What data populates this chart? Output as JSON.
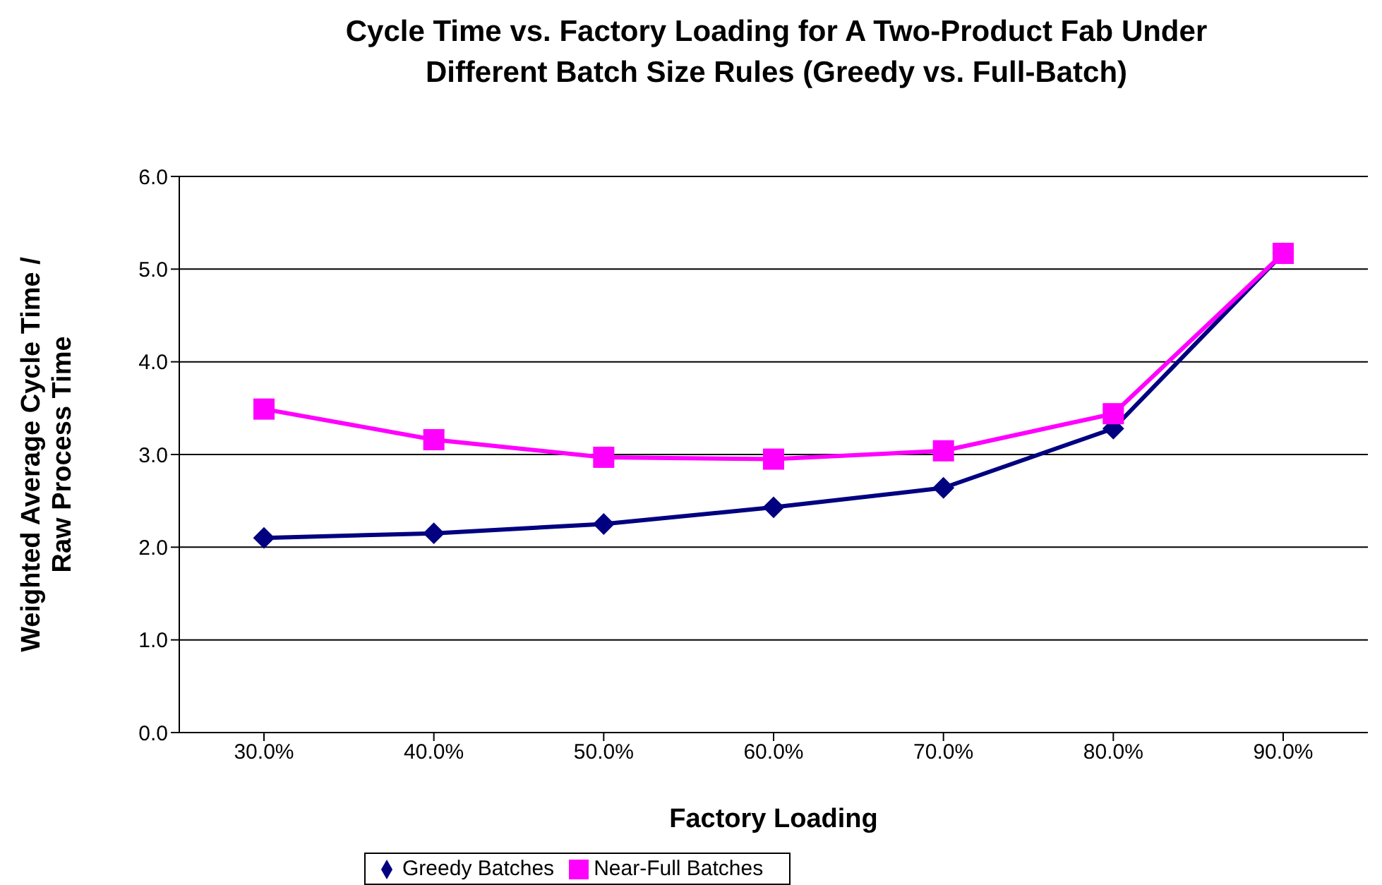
{
  "chart_data": {
    "type": "line",
    "title": "Cycle Time vs. Factory Loading for A Two-Product Fab Under Different Batch Size Rules (Greedy vs. Full-Batch)",
    "xlabel": "Factory Loading",
    "ylabel": "Weighted Average Cycle Time / Raw Process Time",
    "categories": [
      "30.0%",
      "40.0%",
      "50.0%",
      "60.0%",
      "70.0%",
      "80.0%",
      "90.0%"
    ],
    "series": [
      {
        "name": "Greedy Batches",
        "color": "#000080",
        "marker": "diamond",
        "values": [
          2.1,
          2.15,
          2.25,
          2.43,
          2.64,
          3.28,
          5.17
        ]
      },
      {
        "name": "Near-Full Batches",
        "color": "#ff00ff",
        "marker": "square",
        "values": [
          3.49,
          3.16,
          2.97,
          2.95,
          3.04,
          3.44,
          5.17
        ]
      }
    ],
    "ylim": [
      0,
      6
    ],
    "yticks": [
      {
        "value": 0,
        "label": "0.0"
      },
      {
        "value": 1,
        "label": "1.0"
      },
      {
        "value": 2,
        "label": "2.0"
      },
      {
        "value": 3,
        "label": "3.0"
      },
      {
        "value": 4,
        "label": "4.0"
      },
      {
        "value": 5,
        "label": "5.0"
      },
      {
        "value": 6,
        "label": "6.0"
      }
    ],
    "grid": "y",
    "legend": "bottom"
  }
}
